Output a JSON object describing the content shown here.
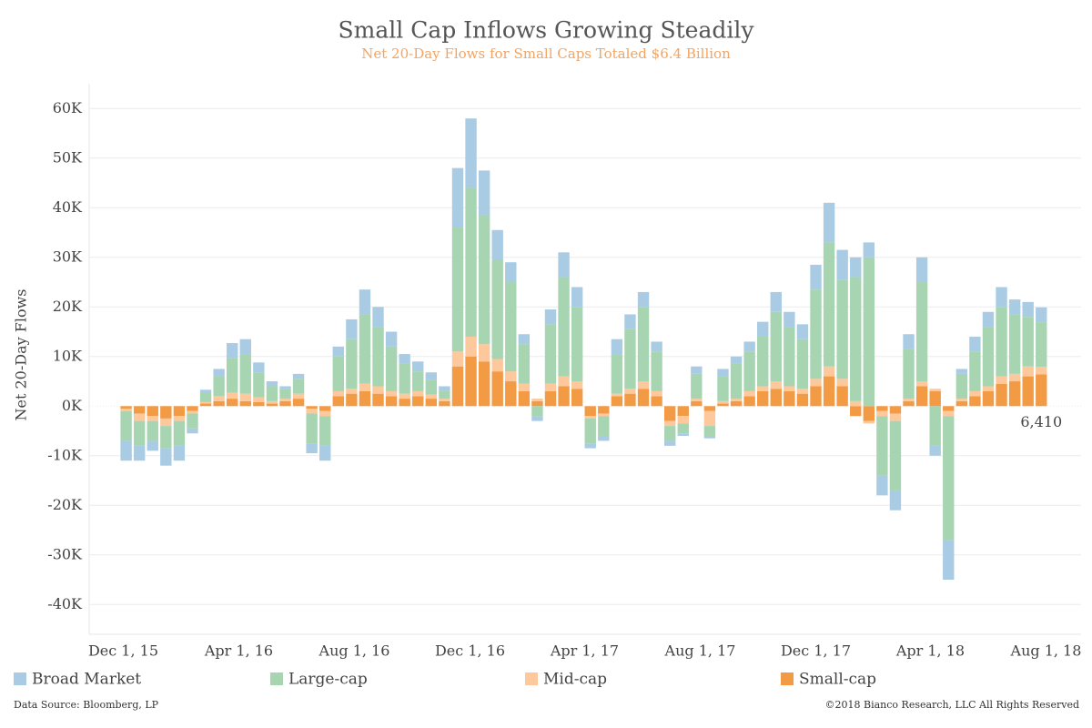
{
  "chart_data": {
    "type": "stacked_bar",
    "title": "Small Cap Inflows Growing Steadily",
    "subtitle": "Net 20-Day Flows for Small Caps Totaled $6.4 Billion",
    "y_label": "Net 20-Day Flows",
    "source": "Data Source: Bloomberg, LP",
    "copyright": "©2018 Bianco Research, LLC  All Rights Reserved",
    "x": [
      "2015-12-04",
      "2015-12-18",
      "2016-01-01",
      "2016-01-15",
      "2016-01-29",
      "2016-02-12",
      "2016-02-26",
      "2016-03-11",
      "2016-03-25",
      "2016-04-08",
      "2016-04-22",
      "2016-05-06",
      "2016-05-20",
      "2016-06-03",
      "2016-06-17",
      "2016-07-01",
      "2016-07-15",
      "2016-07-29",
      "2016-08-12",
      "2016-08-26",
      "2016-09-09",
      "2016-09-23",
      "2016-10-07",
      "2016-10-21",
      "2016-11-04",
      "2016-11-18",
      "2016-12-02",
      "2016-12-16",
      "2016-12-30",
      "2017-01-13",
      "2017-01-27",
      "2017-02-10",
      "2017-02-24",
      "2017-03-10",
      "2017-03-24",
      "2017-04-07",
      "2017-04-21",
      "2017-05-05",
      "2017-05-19",
      "2017-06-02",
      "2017-06-16",
      "2017-06-30",
      "2017-07-14",
      "2017-07-28",
      "2017-08-11",
      "2017-08-25",
      "2017-09-08",
      "2017-09-22",
      "2017-10-06",
      "2017-10-20",
      "2017-11-03",
      "2017-11-17",
      "2017-12-01",
      "2017-12-15",
      "2017-12-29",
      "2018-01-12",
      "2018-01-26",
      "2018-02-09",
      "2018-02-23",
      "2018-03-09",
      "2018-03-23",
      "2018-04-06",
      "2018-04-20",
      "2018-05-04",
      "2018-05-18",
      "2018-06-01",
      "2018-06-15",
      "2018-06-29",
      "2018-07-13",
      "2018-07-27"
    ],
    "series": [
      {
        "name": "Broad Market",
        "color": "#a9cce4",
        "values": [
          -4000,
          -3000,
          -2000,
          -3500,
          -3000,
          -1000,
          500,
          1500,
          3000,
          3000,
          2000,
          1000,
          500,
          1000,
          -2000,
          -3000,
          2000,
          4000,
          5000,
          4000,
          3000,
          2000,
          2000,
          1500,
          1000,
          12000,
          14000,
          9000,
          6000,
          4000,
          2000,
          -1000,
          3000,
          5000,
          4000,
          -1000,
          -1000,
          3000,
          3000,
          3000,
          2000,
          -1000,
          -500,
          1500,
          -500,
          1500,
          1500,
          2000,
          3000,
          4000,
          3000,
          3000,
          5000,
          8000,
          6000,
          4000,
          3000,
          -4000,
          -4000,
          3000,
          5000,
          -2000,
          -8000,
          1000,
          3000,
          3000,
          4000,
          3000,
          3000,
          3000
        ]
      },
      {
        "name": "Large-cap",
        "color": "#a8d5b1",
        "values": [
          -6000,
          -5000,
          -4000,
          -4500,
          -5000,
          -3000,
          2000,
          4000,
          7000,
          8000,
          5000,
          3000,
          2000,
          3000,
          -6000,
          -6000,
          7000,
          10000,
          14000,
          12000,
          9000,
          6000,
          4000,
          3000,
          1500,
          25000,
          30000,
          26000,
          20000,
          18000,
          8000,
          -2000,
          12000,
          20000,
          15000,
          -5000,
          -4000,
          8000,
          12000,
          15000,
          8000,
          -3000,
          -2000,
          5000,
          -2000,
          5000,
          7000,
          8000,
          10000,
          14000,
          12000,
          10000,
          18000,
          25000,
          20000,
          25000,
          30000,
          -12000,
          -14000,
          10000,
          20000,
          -8000,
          -25000,
          5000,
          8000,
          12000,
          14000,
          12000,
          10000,
          9000
        ]
      },
      {
        "name": "Mid-cap",
        "color": "#fdc89b",
        "values": [
          -500,
          -1500,
          -1000,
          -1500,
          -1000,
          -500,
          300,
          1000,
          1200,
          1500,
          1000,
          500,
          500,
          1000,
          -1000,
          -1000,
          1000,
          1000,
          1500,
          1500,
          1000,
          1000,
          1000,
          800,
          500,
          3000,
          4000,
          3500,
          2500,
          2000,
          1500,
          500,
          1500,
          2000,
          1500,
          -500,
          -500,
          500,
          1000,
          1500,
          1000,
          -1000,
          -1500,
          500,
          -3000,
          500,
          500,
          1000,
          1000,
          1500,
          1000,
          1000,
          1500,
          2000,
          1500,
          1000,
          -500,
          -1000,
          -1500,
          500,
          1000,
          500,
          -1000,
          500,
          1000,
          1000,
          1500,
          1500,
          2000,
          1500
        ]
      },
      {
        "name": "Small-cap",
        "color": "#f39a45",
        "values": [
          -500,
          -1500,
          -2000,
          -2500,
          -2000,
          -1000,
          500,
          1000,
          1500,
          1000,
          800,
          500,
          1000,
          1500,
          -500,
          -1000,
          2000,
          2500,
          3000,
          2500,
          2000,
          1500,
          2000,
          1500,
          1000,
          8000,
          10000,
          9000,
          7000,
          5000,
          3000,
          1000,
          3000,
          4000,
          3500,
          -2000,
          -1500,
          2000,
          2500,
          3500,
          2000,
          -3000,
          -2000,
          1000,
          -1000,
          500,
          1000,
          2000,
          3000,
          3500,
          3000,
          2500,
          4000,
          6000,
          4000,
          -2000,
          -3000,
          -1000,
          -1500,
          1000,
          4000,
          3000,
          -1000,
          1000,
          2000,
          3000,
          4500,
          5000,
          6000,
          6410
        ],
        "value_labels": [
          null,
          null,
          null,
          null,
          null,
          null,
          null,
          null,
          null,
          null,
          null,
          null,
          null,
          null,
          null,
          null,
          null,
          null,
          null,
          null,
          null,
          null,
          null,
          null,
          null,
          null,
          null,
          null,
          null,
          null,
          null,
          null,
          null,
          null,
          null,
          null,
          null,
          null,
          null,
          null,
          null,
          null,
          null,
          null,
          null,
          null,
          null,
          null,
          null,
          null,
          null,
          null,
          null,
          null,
          null,
          null,
          null,
          null,
          null,
          null,
          null,
          null,
          null,
          null,
          null,
          null,
          null,
          null,
          null,
          "6,410"
        ]
      }
    ],
    "xlim": [
      "2015-10-26",
      "2018-09-07"
    ],
    "xticks": [
      {
        "value": "2015-12-01",
        "label": "Dec 1, 15"
      },
      {
        "value": "2016-04-01",
        "label": "Apr 1, 16"
      },
      {
        "value": "2016-08-01",
        "label": "Aug 1, 16"
      },
      {
        "value": "2016-12-01",
        "label": "Dec 1, 16"
      },
      {
        "value": "2017-04-01",
        "label": "Apr 1, 17"
      },
      {
        "value": "2017-08-01",
        "label": "Aug 1, 17"
      },
      {
        "value": "2017-12-01",
        "label": "Dec 1, 17"
      },
      {
        "value": "2018-04-01",
        "label": "Apr 1, 18"
      },
      {
        "value": "2018-08-01",
        "label": "Aug 1, 18"
      }
    ],
    "ylim": [
      -46000,
      65000
    ],
    "yticks": [
      {
        "value": -40000,
        "label": "-40K"
      },
      {
        "value": -30000,
        "label": "-30K"
      },
      {
        "value": -20000,
        "label": "-20K"
      },
      {
        "value": -10000,
        "label": "-10K"
      },
      {
        "value": 0,
        "label": "0K"
      },
      {
        "value": 10000,
        "label": "10K"
      },
      {
        "value": 20000,
        "label": "20K"
      },
      {
        "value": 30000,
        "label": "30K"
      },
      {
        "value": 40000,
        "label": "40K"
      },
      {
        "value": 50000,
        "label": "50K"
      },
      {
        "value": 60000,
        "label": "60K"
      }
    ],
    "grid": true
  }
}
